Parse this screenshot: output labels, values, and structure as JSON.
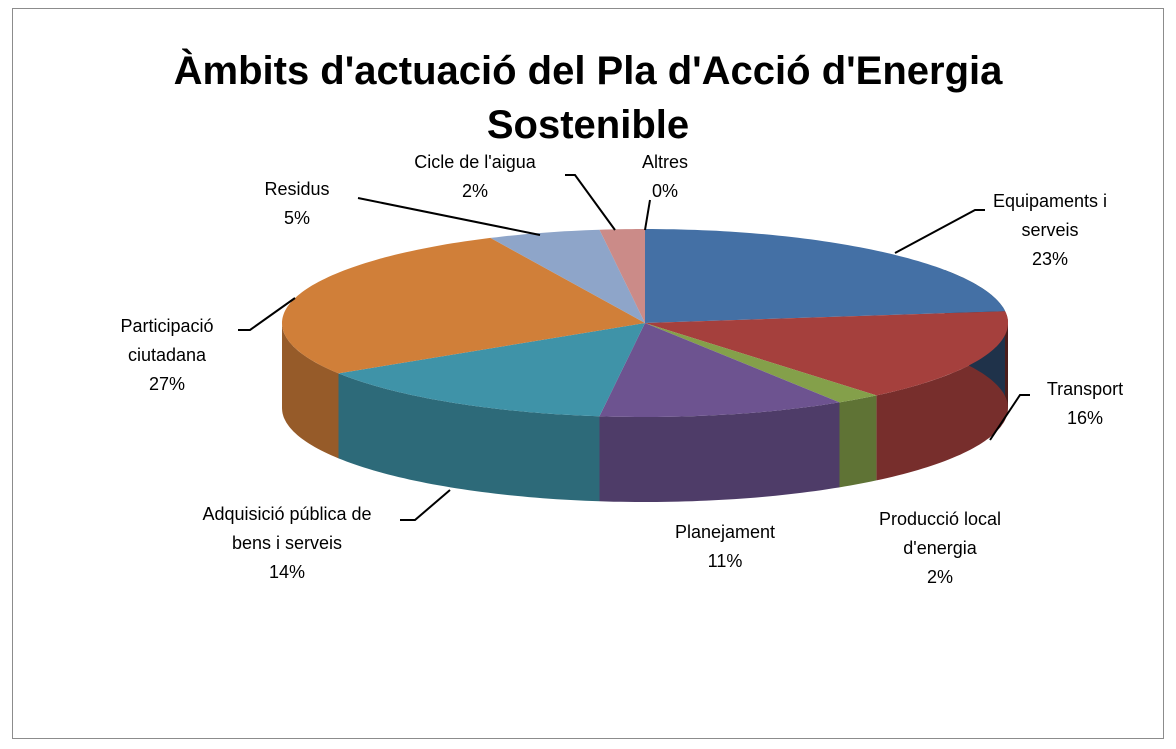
{
  "chart_data": {
    "type": "pie",
    "title": "Àmbits d'actuació del Pla d'Acció d'Energia Sostenible",
    "categories": [
      "Equipaments i serveis",
      "Transport",
      "Producció local d'energia",
      "Planejament",
      "Adquisició pública de bens i serveis",
      "Participació ciutadana",
      "Residus",
      "Cicle de l'aigua",
      "Altres"
    ],
    "values": [
      23,
      16,
      2,
      11,
      14,
      27,
      5,
      2,
      0
    ],
    "value_labels": [
      "23%",
      "16%",
      "2%",
      "11%",
      "14%",
      "27%",
      "5%",
      "2%",
      "0%"
    ],
    "colors": [
      "#4470a5",
      "#a5403d",
      "#84a04a",
      "#6d5390",
      "#3f93a8",
      "#d07f39",
      "#8ea5c9",
      "#cb8b88",
      "#a9c47f"
    ]
  }
}
